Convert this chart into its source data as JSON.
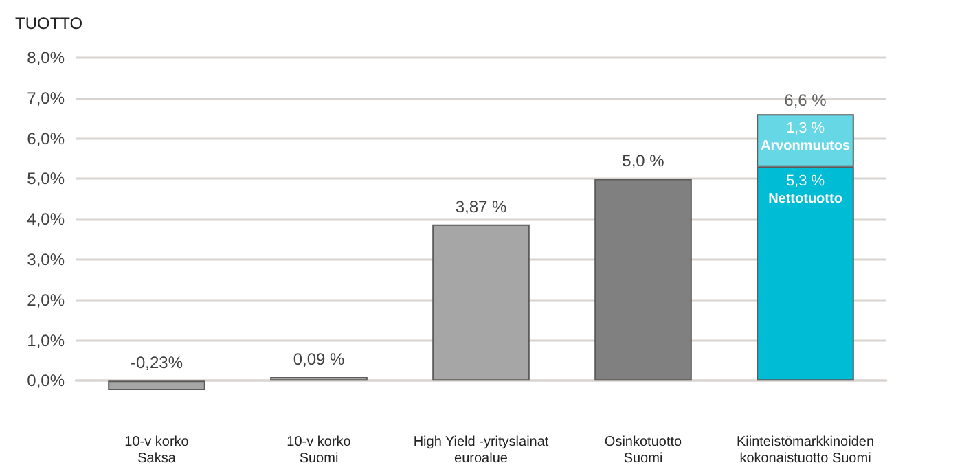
{
  "chart_data": {
    "type": "bar",
    "ylabel": "TUOTTO",
    "categories": [
      "10-v korko\nSaksa",
      "10-v korko\nSuomi",
      "High Yield -yrityslainat\neuroalue",
      "Osinkotuotto\nSuomi",
      "Kiinteistömarkkinoiden\nkokonaistuotto Suomi"
    ],
    "series": [
      {
        "colors": [
          "#a6a6a6",
          "#a6a6a6",
          "#a6a6a6",
          "#808080",
          null
        ],
        "values": [
          -0.23,
          0.09,
          3.87,
          5.0,
          null
        ],
        "value_labels": [
          "-0,23%",
          "0,09 %",
          "3,87 %",
          "5,0 %",
          null
        ]
      },
      {
        "name": "Nettotuotto",
        "color": "#00bcd4",
        "values": [
          null,
          null,
          null,
          null,
          5.3
        ],
        "value_labels": [
          null,
          null,
          null,
          null,
          "5,3 %"
        ]
      },
      {
        "name": "Arvonmuutos",
        "color": "#66d7e5",
        "values": [
          null,
          null,
          null,
          null,
          1.3
        ],
        "value_labels": [
          null,
          null,
          null,
          null,
          "1,3 %"
        ]
      }
    ],
    "stacked": true,
    "totals": [
      null,
      null,
      null,
      null,
      "6,6 %"
    ],
    "ylim": [
      -0.3,
      8
    ],
    "yticks": [
      {
        "value": 0,
        "label": "0,0%"
      },
      {
        "value": 1,
        "label": "1,0%"
      },
      {
        "value": 2,
        "label": "2,0%"
      },
      {
        "value": 3,
        "label": "3,0%"
      },
      {
        "value": 4,
        "label": "4,0%"
      },
      {
        "value": 5,
        "label": "5,0%"
      },
      {
        "value": 6,
        "label": "6,0%"
      },
      {
        "value": 7,
        "label": "7,0%"
      },
      {
        "value": 8,
        "label": "8,0%"
      }
    ],
    "grid": "y"
  }
}
